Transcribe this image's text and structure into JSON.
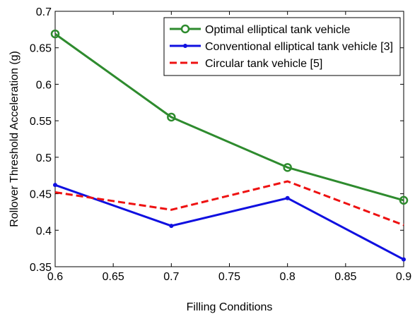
{
  "chart_data": {
    "type": "line",
    "title": "",
    "xlabel": "Filling Conditions",
    "ylabel": "Rollover Threshold Acceleration (g)",
    "xlim": [
      0.6,
      0.9
    ],
    "ylim": [
      0.35,
      0.7
    ],
    "x_ticks": [
      0.6,
      0.65,
      0.7,
      0.75,
      0.8,
      0.85,
      0.9
    ],
    "x_tick_labels": [
      "0.6",
      "0.65",
      "0.7",
      "0.75",
      "0.8",
      "0.85",
      "0.9"
    ],
    "y_ticks": [
      0.35,
      0.4,
      0.45,
      0.5,
      0.55,
      0.6,
      0.65,
      0.7
    ],
    "y_tick_labels": [
      "0.35",
      "0.4",
      "0.45",
      "0.5",
      "0.55",
      "0.6",
      "0.65",
      "0.7"
    ],
    "grid": false,
    "legend_position": "top-right",
    "series": [
      {
        "name": "Optimal elliptical tank vehicle",
        "x": [
          0.6,
          0.7,
          0.8,
          0.9
        ],
        "values": [
          0.669,
          0.555,
          0.486,
          0.441
        ],
        "color": "#2e8b2e",
        "line_style": "solid",
        "marker": "circle"
      },
      {
        "name": "Conventional elliptical tank vehicle [3]",
        "x": [
          0.6,
          0.7,
          0.8,
          0.9
        ],
        "values": [
          0.462,
          0.406,
          0.444,
          0.36
        ],
        "color": "#1010e0",
        "line_style": "solid",
        "marker": "dot"
      },
      {
        "name": "Circular tank vehicle [5]",
        "x": [
          0.6,
          0.7,
          0.8,
          0.9
        ],
        "values": [
          0.452,
          0.428,
          0.467,
          0.407
        ],
        "color": "#ee1111",
        "line_style": "dashed",
        "marker": "none"
      }
    ]
  }
}
